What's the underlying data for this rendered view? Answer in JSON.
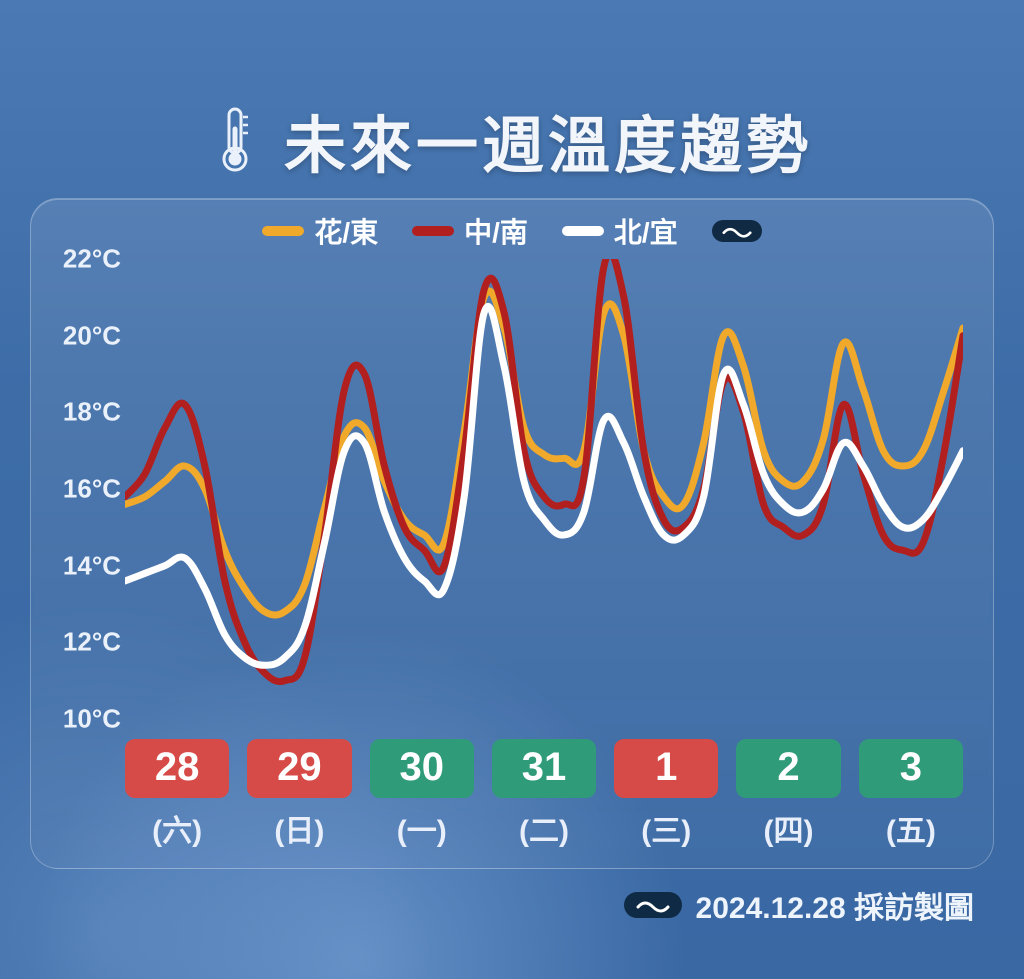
{
  "title": "未來一週溫度趨勢",
  "footer_text": "2024.12.28 採訪製圖",
  "colors": {
    "bg_top": "#4b79b3",
    "bg_bottom": "#3a68a3",
    "panel_border": "rgba(255,255,255,0.28)",
    "text": "#ffffff",
    "badge_red": "#d64a47",
    "badge_green": "#2f9b78",
    "logo_bg": "#0f2a45"
  },
  "chart": {
    "type": "line",
    "ylim": [
      10,
      22
    ],
    "ytick_step": 2,
    "y_unit": "°C",
    "y_ticks": [
      22,
      20,
      18,
      16,
      14,
      12,
      10
    ],
    "line_width": 7,
    "legend": [
      {
        "label": "花/東",
        "color": "#f0a92a"
      },
      {
        "label": "中/南",
        "color": "#b21f1f"
      },
      {
        "label": "北/宜",
        "color": "#ffffff"
      }
    ],
    "x_count": 43,
    "days": [
      {
        "num": "28",
        "wd": "(六)",
        "kind": "red"
      },
      {
        "num": "29",
        "wd": "(日)",
        "kind": "red"
      },
      {
        "num": "30",
        "wd": "(一)",
        "kind": "green"
      },
      {
        "num": "31",
        "wd": "(二)",
        "kind": "green"
      },
      {
        "num": "1",
        "wd": "(三)",
        "kind": "red"
      },
      {
        "num": "2",
        "wd": "(四)",
        "kind": "green"
      },
      {
        "num": "3",
        "wd": "(五)",
        "kind": "green"
      }
    ],
    "series": {
      "hua_dong": {
        "color": "#f0a92a",
        "values": [
          15.6,
          15.8,
          16.2,
          16.6,
          16.0,
          14.4,
          13.4,
          12.8,
          12.8,
          13.5,
          15.5,
          17.4,
          17.6,
          16.2,
          15.2,
          14.8,
          14.6,
          17.5,
          21.0,
          20.2,
          17.6,
          16.9,
          16.8,
          17.0,
          20.6,
          20.0,
          17.0,
          15.8,
          15.6,
          17.2,
          20.0,
          19.2,
          17.0,
          16.2,
          16.2,
          17.3,
          19.8,
          18.6,
          17.0,
          16.6,
          17.0,
          18.5,
          20.2
        ]
      },
      "zhong_nan": {
        "color": "#b21f1f",
        "values": [
          15.8,
          16.4,
          17.6,
          18.2,
          16.6,
          13.6,
          12.0,
          11.2,
          11.0,
          11.6,
          14.8,
          18.6,
          19.0,
          16.6,
          15.0,
          14.4,
          14.0,
          17.0,
          21.2,
          20.6,
          17.0,
          15.8,
          15.6,
          16.3,
          21.8,
          21.0,
          17.0,
          15.2,
          15.0,
          16.0,
          18.8,
          18.0,
          15.6,
          15.0,
          14.8,
          15.6,
          18.2,
          16.4,
          14.8,
          14.4,
          14.6,
          16.8,
          20.0
        ]
      },
      "bei_yi": {
        "color": "#ffffff",
        "values": [
          13.6,
          13.8,
          14.0,
          14.2,
          13.4,
          12.2,
          11.6,
          11.4,
          11.6,
          12.4,
          14.6,
          17.0,
          17.2,
          15.4,
          14.2,
          13.6,
          13.4,
          15.8,
          20.6,
          19.2,
          16.2,
          15.2,
          14.8,
          15.4,
          17.8,
          17.2,
          15.8,
          14.8,
          14.8,
          15.8,
          19.0,
          18.2,
          16.4,
          15.6,
          15.4,
          16.0,
          17.2,
          16.6,
          15.6,
          15.0,
          15.2,
          16.0,
          17.0
        ]
      }
    }
  }
}
